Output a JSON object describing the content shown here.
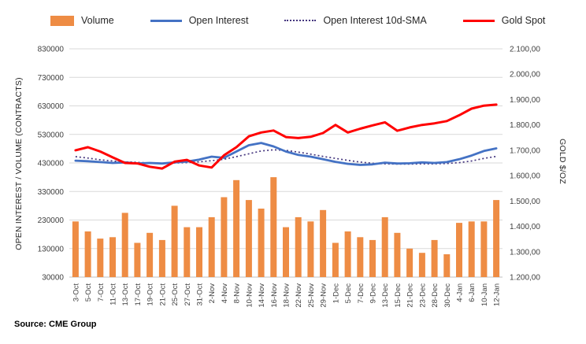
{
  "chart_data": {
    "type": "combo",
    "title": "",
    "source": "Source: CME Group",
    "ylabel_left": "OPEN INTEREST / VOLUME (CONTRACTS)",
    "ylabel_right": "GOLD $/OZ",
    "legend_position": "top",
    "grid": true,
    "grid_color": "#D9D9D9",
    "text_color": "#404040",
    "axis_line_color": "#BFBFBF",
    "categories": [
      "3-Oct",
      "5-Oct",
      "7-Oct",
      "11-Oct",
      "13-Oct",
      "17-Oct",
      "19-Oct",
      "21-Oct",
      "25-Oct",
      "27-Oct",
      "31-Oct",
      "2-Nov",
      "4-Nov",
      "8-Nov",
      "10-Nov",
      "14-Nov",
      "16-Nov",
      "18-Nov",
      "22-Nov",
      "25-Nov",
      "29-Nov",
      "1-Dec",
      "5-Dec",
      "7-Dec",
      "9-Dec",
      "13-Dec",
      "15-Dec",
      "21-Dec",
      "23-Dec",
      "28-Dec",
      "30-Dec",
      "4-Jan",
      "6-Jan",
      "10-Jan",
      "12-Jan"
    ],
    "left_axis": {
      "min": 30000,
      "max": 830000,
      "ticks": [
        "30000",
        "130000",
        "230000",
        "330000",
        "430000",
        "530000",
        "630000",
        "730000",
        "830000"
      ]
    },
    "right_axis": {
      "min": 1200,
      "max": 2100,
      "ticks": [
        "1.200,00",
        "1.300,00",
        "1.400,00",
        "1.500,00",
        "1.600,00",
        "1.700,00",
        "1.800,00",
        "1.900,00",
        "2.000,00",
        "2.100,00"
      ]
    },
    "series": [
      {
        "name": "Volume",
        "type": "bar",
        "axis": "left",
        "color": "#EE8C44",
        "values": [
          225000,
          190000,
          165000,
          170000,
          255000,
          150000,
          185000,
          160000,
          280000,
          205000,
          205000,
          240000,
          310000,
          370000,
          300000,
          270000,
          380000,
          205000,
          240000,
          225000,
          265000,
          150000,
          190000,
          170000,
          160000,
          240000,
          185000,
          130000,
          115000,
          160000,
          110000,
          220000,
          225000,
          225000,
          300000
        ]
      },
      {
        "name": "Open Interest",
        "type": "line",
        "axis": "left",
        "color": "#4472C4",
        "values": [
          438000,
          436000,
          433000,
          430000,
          432000,
          428000,
          430000,
          428000,
          432000,
          435000,
          442000,
          452000,
          448000,
          470000,
          492000,
          500000,
          488000,
          470000,
          458000,
          452000,
          443000,
          434000,
          427000,
          423000,
          425000,
          431000,
          428000,
          429000,
          432000,
          430000,
          433000,
          443000,
          456000,
          472000,
          481000
        ]
      },
      {
        "name": "Open Interest 10d-SMA",
        "type": "line",
        "dash": "dotted",
        "axis": "left",
        "color": "#44357E",
        "values": [
          452000,
          447000,
          441000,
          437000,
          434000,
          432000,
          430000,
          429000,
          430000,
          431000,
          434000,
          438000,
          443000,
          452000,
          462000,
          472000,
          476000,
          474000,
          468000,
          461000,
          453000,
          446000,
          439000,
          433000,
          429000,
          427000,
          426000,
          426000,
          427000,
          427000,
          428000,
          431000,
          437000,
          446000,
          453000
        ]
      },
      {
        "name": "Gold Spot",
        "type": "line",
        "axis": "right",
        "color": "#FF0000",
        "values": [
          1700,
          1712,
          1695,
          1672,
          1650,
          1648,
          1635,
          1628,
          1655,
          1662,
          1640,
          1632,
          1680,
          1712,
          1755,
          1770,
          1778,
          1752,
          1748,
          1753,
          1768,
          1800,
          1770,
          1785,
          1798,
          1810,
          1777,
          1790,
          1800,
          1806,
          1815,
          1838,
          1864,
          1876,
          1880
        ]
      }
    ]
  }
}
